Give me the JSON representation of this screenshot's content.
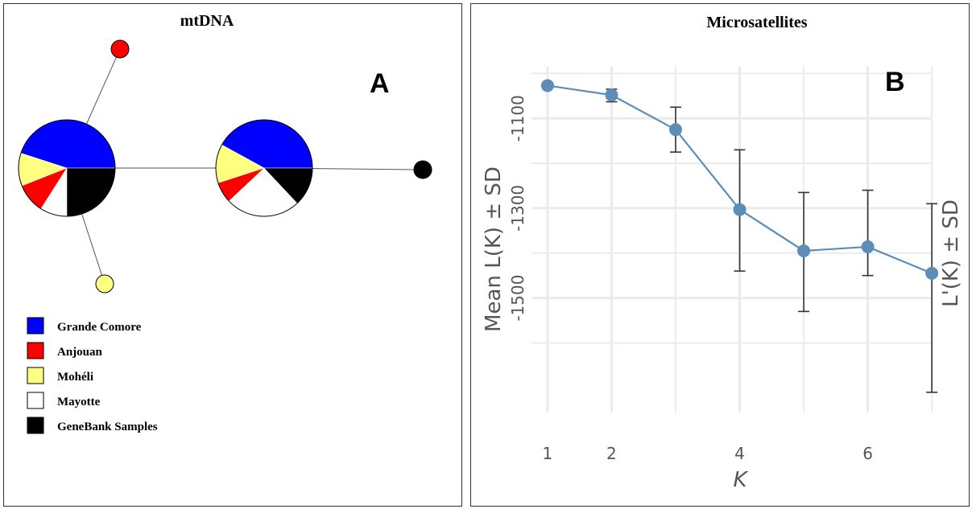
{
  "panel_a": {
    "title": "mtDNA",
    "letter": "A",
    "legend": [
      {
        "label": "Grande Comore",
        "color": "#0000ff"
      },
      {
        "label": "Anjouan",
        "color": "#ff0000"
      },
      {
        "label": "Mohéli",
        "color": "#ffff80"
      },
      {
        "label": "Mayotte",
        "color": "#ffffff"
      },
      {
        "label": "GeneBank Samples",
        "color": "#000000"
      }
    ]
  },
  "panel_b": {
    "title": "Microsatellites",
    "letter": "B"
  },
  "chart_data": [
    {
      "type": "network",
      "title": "mtDNA",
      "nodes": [
        {
          "name": "haplotype 1",
          "slices": [
            {
              "population": "Grande Comore",
              "fraction": 0.45
            },
            {
              "population": "Mohéli",
              "fraction": 0.11
            },
            {
              "population": "Anjouan",
              "fraction": 0.1
            },
            {
              "population": "Mayotte",
              "fraction": 0.09
            },
            {
              "population": "GeneBank Samples",
              "fraction": 0.25
            }
          ]
        },
        {
          "name": "haplotype 2",
          "slices": [
            {
              "population": "Grande Comore",
              "fraction": 0.42
            },
            {
              "population": "Mohéli",
              "fraction": 0.13
            },
            {
              "population": "Anjouan",
              "fraction": 0.07
            },
            {
              "population": "Mayotte",
              "fraction": 0.25
            },
            {
              "population": "GeneBank Samples",
              "fraction": 0.13
            }
          ]
        },
        {
          "name": "haplotype 3",
          "slices": [
            {
              "population": "Anjouan",
              "fraction": 1
            }
          ]
        },
        {
          "name": "haplotype 4",
          "slices": [
            {
              "population": "Mohéli",
              "fraction": 1
            }
          ]
        },
        {
          "name": "haplotype 5",
          "slices": [
            {
              "population": "GeneBank Samples",
              "fraction": 1
            }
          ]
        }
      ],
      "edges": [
        [
          "haplotype 1",
          "haplotype 2"
        ],
        [
          "haplotype 1",
          "haplotype 3"
        ],
        [
          "haplotype 1",
          "haplotype 4"
        ],
        [
          "haplotype 2",
          "haplotype 5"
        ]
      ]
    },
    {
      "type": "line",
      "title": "Microsatellites",
      "xlabel": "K",
      "ylabel": "Mean L(K) ± SD",
      "ylabel_right": "L'(K) ± SD",
      "x": [
        1,
        2,
        3,
        4,
        5,
        6,
        7
      ],
      "y": [
        -1027,
        -1048,
        -1125,
        -1303,
        -1395,
        -1386,
        -1445
      ],
      "yerr_low": [
        -1027,
        -1063,
        -1175,
        -1440,
        -1530,
        -1450,
        -1710
      ],
      "yerr_high": [
        -1027,
        -1035,
        -1075,
        -1170,
        -1265,
        -1260,
        -1290
      ],
      "xticks": [
        1,
        2,
        4,
        6
      ],
      "xtick_labels": [
        "1",
        "2",
        "4",
        "6"
      ],
      "yticks": [
        -1100,
        -1300,
        -1500
      ],
      "ytick_labels": [
        "-1100",
        "-1300",
        "-1500"
      ],
      "xlim": [
        0.75,
        7.3
      ],
      "ylim": [
        -1755,
        -985
      ],
      "grid": true,
      "line_color": "#5b8db8",
      "error_bar_color": "#333333"
    }
  ]
}
